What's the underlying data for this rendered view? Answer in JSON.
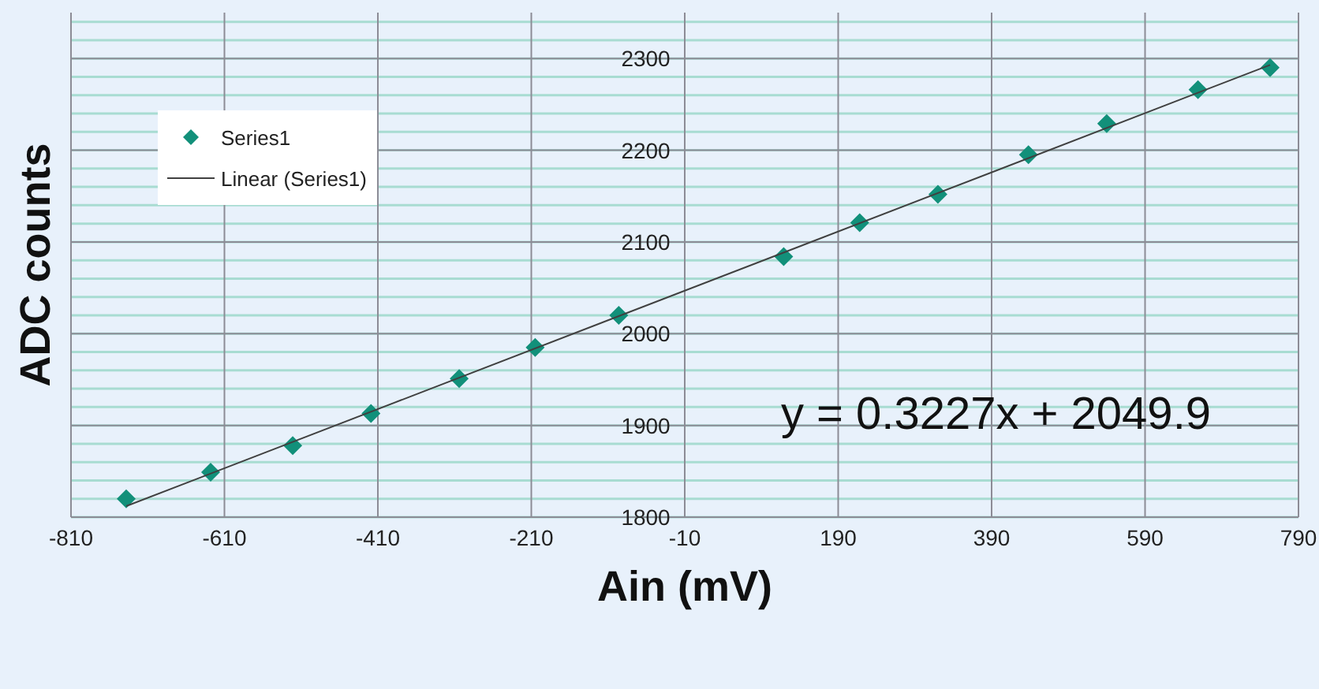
{
  "chart_data": {
    "type": "scatter",
    "xlabel": "Ain (mV)",
    "ylabel": "ADC counts",
    "annotations": [
      "y = 0.3227x + 2049.9"
    ],
    "series": [
      {
        "name": "Series1",
        "color": "#12907a",
        "marker": "diamond",
        "x": [
          -738,
          -628,
          -521,
          -419,
          -304,
          -205,
          -96,
          119,
          218,
          320,
          438,
          540,
          659,
          753
        ],
        "values": [
          1820,
          1849,
          1878,
          1913,
          1951,
          1985,
          2020,
          2084,
          2121,
          2152,
          2195,
          2229,
          2266,
          2290
        ]
      },
      {
        "name": "Linear (Series1)",
        "type": "line",
        "color": "#404040",
        "marker": "none",
        "line_style": "solid",
        "x": [
          -738,
          753
        ],
        "values": [
          1812,
          2293
        ]
      }
    ],
    "xlim": [
      -810,
      790
    ],
    "xticks": [
      -810,
      -610,
      -410,
      -210,
      -10,
      190,
      390,
      590,
      790
    ],
    "ylim": [
      1800,
      2350
    ],
    "yticks": [
      1800,
      {
        "value": 1820,
        "label": null
      },
      {
        "value": 1840,
        "label": null
      },
      {
        "value": 1860,
        "label": null
      },
      {
        "value": 1880,
        "label": null
      },
      1900,
      {
        "value": 1920,
        "label": null
      },
      {
        "value": 1940,
        "label": null
      },
      {
        "value": 1960,
        "label": null
      },
      {
        "value": 1980,
        "label": null
      },
      2000,
      {
        "value": 2020,
        "label": null
      },
      {
        "value": 2040,
        "label": null
      },
      {
        "value": 2060,
        "label": null
      },
      {
        "value": 2080,
        "label": null
      },
      2100,
      {
        "value": 2120,
        "label": null
      },
      {
        "value": 2140,
        "label": null
      },
      {
        "value": 2160,
        "label": null
      },
      {
        "value": 2180,
        "label": null
      },
      2200,
      {
        "value": 2220,
        "label": null
      },
      {
        "value": 2240,
        "label": null
      },
      {
        "value": 2260,
        "label": null
      },
      {
        "value": 2280,
        "label": null
      },
      2300,
      {
        "value": 2320,
        "label": null
      },
      {
        "value": 2340,
        "label": null
      }
    ],
    "grid": true,
    "legend": "top left"
  }
}
